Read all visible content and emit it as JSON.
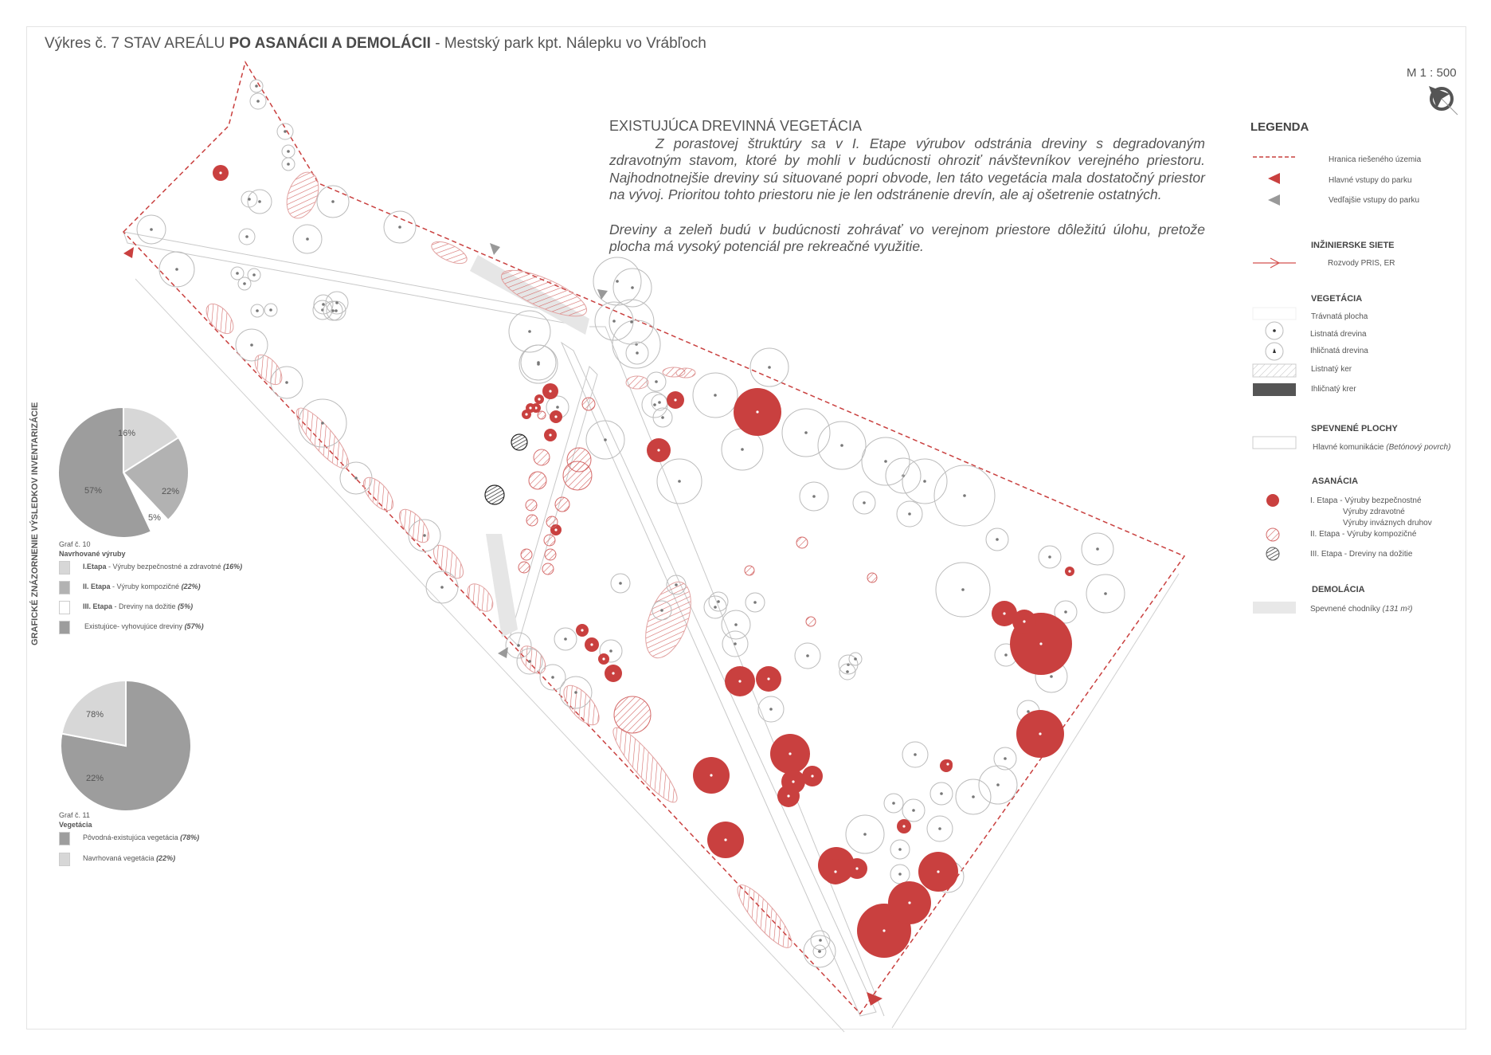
{
  "title": {
    "prefix": "Výkres č. 7 STAV AREÁLU ",
    "bold": "PO ASANÁCII A DEMOLÁCII",
    "suffix": " - Mestský park kpt. Nálepku vo Vrábľoch"
  },
  "scale": "M 1 : 500",
  "description": {
    "heading": "EXISTUJÚCA DREVINNÁ VEGETÁCIA",
    "paragraph1": "Z porastovej štruktúry  sa v I. Etape výrubov odstránia dreviny s degradovaným zdravotným stavom, ktoré by mohli v budúcnosti ohroziť návštevníkov verejného priestoru. Najhodnotnejšie dreviny sú situované popri obvode, len táto vegetácia mala dostatočný priestor na vývoj. Prioritou tohto priestoru nie je len odstránenie drevín, ale aj ošetrenie ostatných.",
    "paragraph2": "Dreviny a zeleň budú v budúcnosti zohrávať vo verejnom priestore dôležitú úlohu, pretože plocha má vysoký potenciál pre rekreačné využitie."
  },
  "legend": {
    "title": "LEGENDA",
    "boundary": "Hranica riešeného územia",
    "main_entries": "Hlavné vstupy do parku",
    "side_entries": "Vedľajšie vstupy do parku",
    "networks_heading": "INŽINIERSKE SIETE",
    "networks_item": "Rozvody PRIS, ER",
    "vegetation_heading": "VEGETÁCIA",
    "grass": "Trávnatá plocha",
    "deciduous_tree": "Listnatá drevina",
    "conifer_tree": "Ihličnatá drevina",
    "deciduous_shrub": "Listnatý ker",
    "conifer_shrub": "Ihličnatý krer",
    "paved_heading": "SPEVNENÉ PLOCHY",
    "paved_item": "Hlavné komunikácie",
    "paved_item_note": "(Betónový povrch)",
    "sanitation_heading": "ASANÁCIA",
    "stage1": "I. Etapa - Výruby bezpečnostné",
    "stage1_line2": "Výruby zdravotné",
    "stage1_line3": "Výruby inváznych druhov",
    "stage2": "II. Etapa - Výruby kompozičné",
    "stage3": "III. Etapa - Dreviny na dožitie",
    "demolition_heading": "DEMOLÁCIA",
    "demolition_item": "Spevnené chodníky",
    "demolition_note": "(131 m²)"
  },
  "side_title": "GRAFICKÉ ZNÁZORNENIE VÝSLEDKOV INVENTARIZÁCIE",
  "colors": {
    "red": "#c9403f",
    "gray": "#9a9a9a"
  },
  "chart_data": [
    {
      "type": "pie",
      "caption": "Graf č. 10",
      "title": "Navrhované výruby",
      "slices": [
        {
          "bold": "I.Etapa",
          "label": " - Výruby bezpečnostné a zdravotné ",
          "pct_text": "(16%)",
          "value": 16,
          "value_label": "16%",
          "color": "#d7d7d7"
        },
        {
          "bold": "II. Etapa",
          "label": " - Výruby kompozičné ",
          "pct_text": "(22%)",
          "value": 22,
          "value_label": "22%",
          "color": "#b2b2b2"
        },
        {
          "bold": "III. Etapa",
          "label": " - Dreviny na dožitie ",
          "pct_text": "(5%)",
          "value": 5,
          "value_label": "5%",
          "color": "#ffffff"
        },
        {
          "bold": "",
          "label": "Existujúce- vyhovujúce dreviny ",
          "pct_text": "(57%)",
          "value": 57,
          "value_label": "57%",
          "color": "#9d9d9d"
        }
      ]
    },
    {
      "type": "pie",
      "caption": "Graf č. 11",
      "title": "Vegetácia",
      "slices": [
        {
          "bold": "",
          "label": "Pôvodná-existujúca vegetácia ",
          "pct_text": "(78%)",
          "value": 78,
          "value_label": "78%",
          "color": "#9d9d9d"
        },
        {
          "bold": "",
          "label": "Navrhovaná vegetácia ",
          "pct_text": "(22%)",
          "value": 22,
          "value_label": "22%",
          "color": "#d7d7d7"
        }
      ]
    }
  ]
}
